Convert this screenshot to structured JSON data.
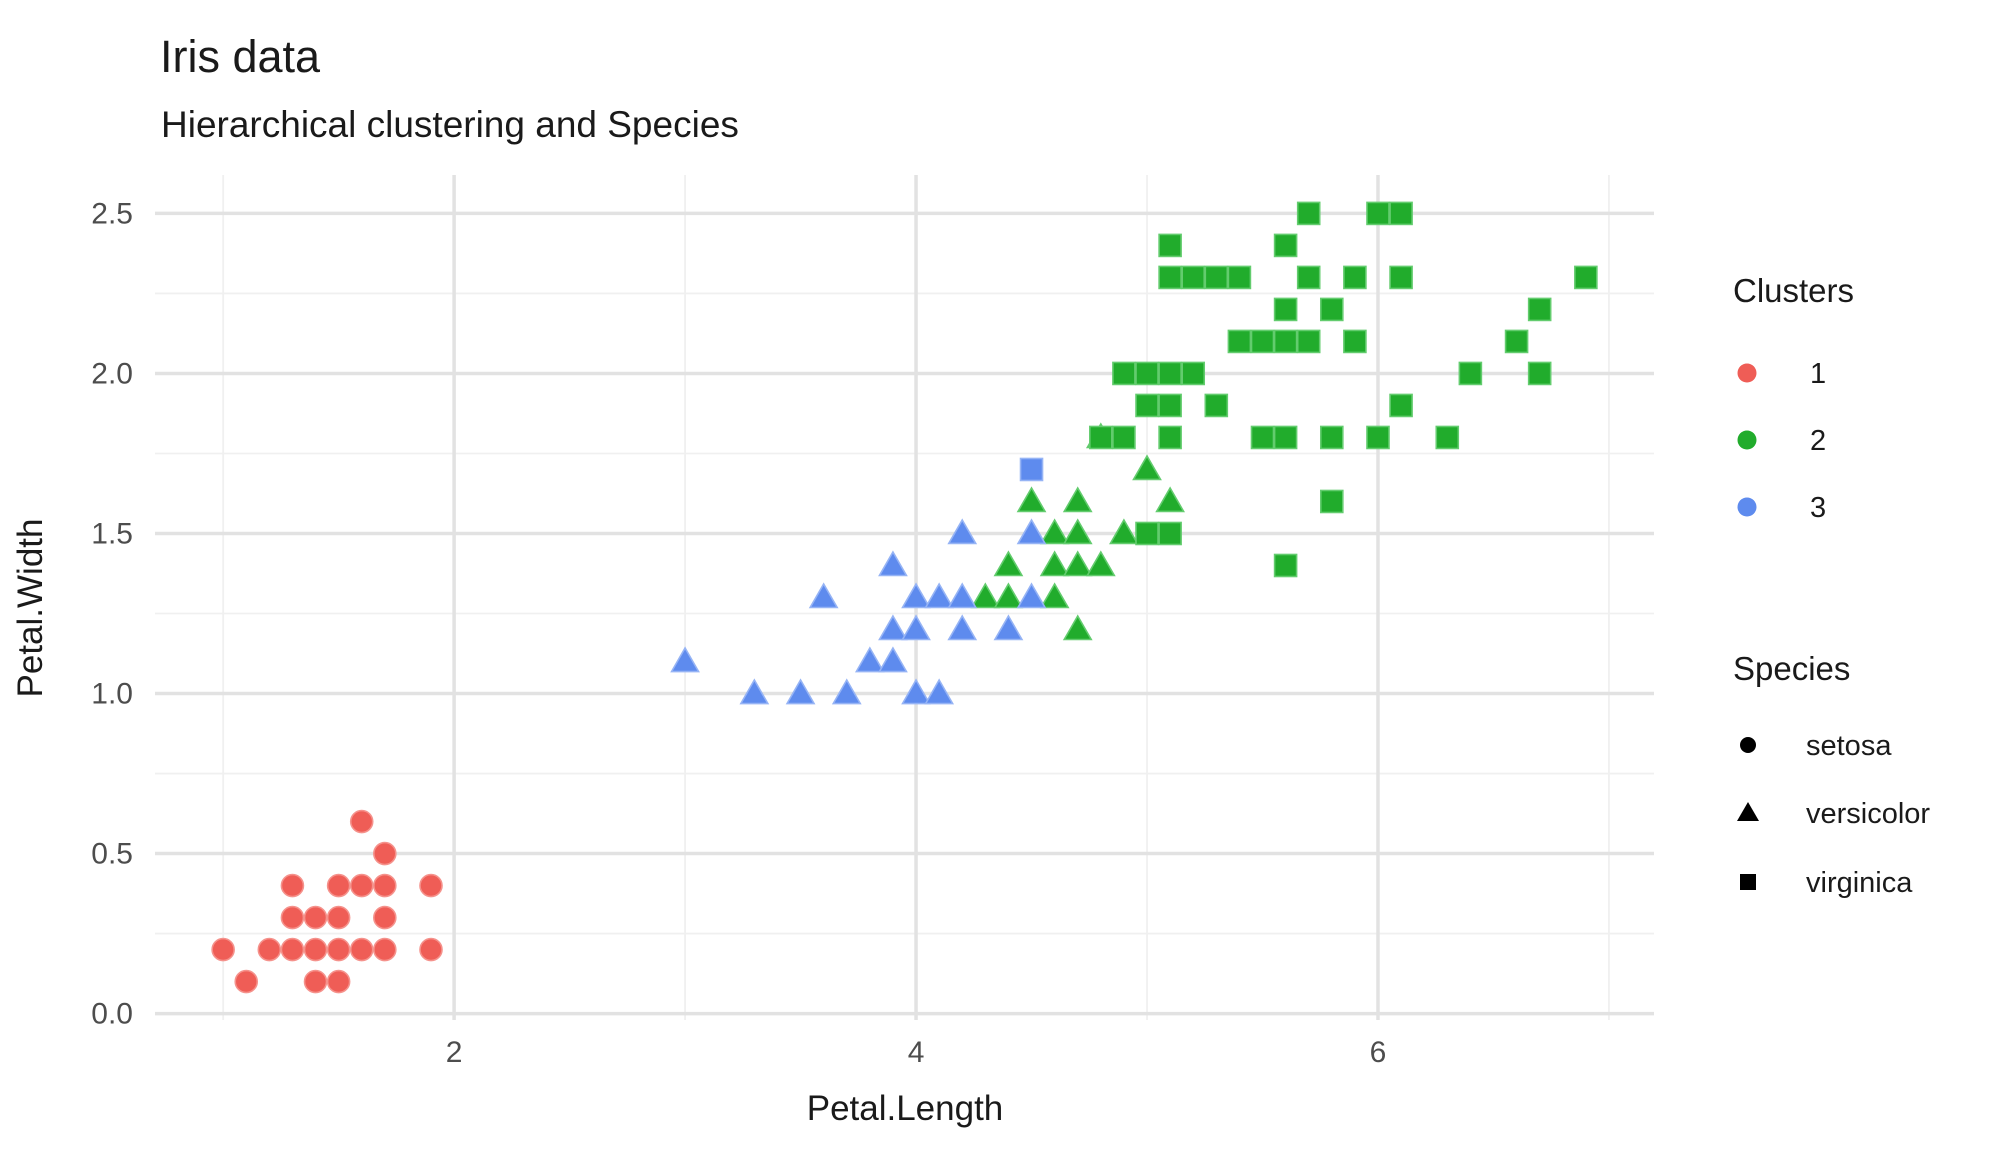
{
  "title": "Iris data",
  "subtitle": "Hierarchical clustering and Species",
  "axes": {
    "x_label": "Petal.Length",
    "y_label": "Petal.Width",
    "x_tick_labels": [
      "2",
      "4",
      "6"
    ],
    "y_tick_labels": [
      "0.0",
      "0.5",
      "1.0",
      "1.5",
      "2.0",
      "2.5"
    ]
  },
  "legend": {
    "clusters": {
      "title": "Clusters",
      "items": [
        {
          "label": "1",
          "color": "#EF5D56"
        },
        {
          "label": "2",
          "color": "#21AC2C"
        },
        {
          "label": "3",
          "color": "#5E8BEE"
        }
      ]
    },
    "species": {
      "title": "Species",
      "items": [
        {
          "label": "setosa",
          "shape": "circle"
        },
        {
          "label": "versicolor",
          "shape": "triangle"
        },
        {
          "label": "virginica",
          "shape": "square"
        }
      ]
    }
  },
  "style_colors": {
    "grid_major": "#e2e2e2",
    "grid_minor": "#f0f0f0",
    "tick_text": "#4d4d4d",
    "main_text": "#1a1a1a"
  },
  "chart_data": {
    "type": "scatter",
    "title": "Iris data",
    "subtitle": "Hierarchical clustering and Species",
    "xlabel": "Petal.Length",
    "ylabel": "Petal.Width",
    "x_range": [
      0.705,
      7.195
    ],
    "y_range": [
      -0.02,
      2.62
    ],
    "x_ticks_major": [
      2,
      4,
      6
    ],
    "x_ticks_minor": [
      1,
      3,
      5,
      7
    ],
    "y_ticks_major": [
      0,
      0.5,
      1.0,
      1.5,
      2.0,
      2.5
    ],
    "y_ticks_minor": [
      0.25,
      0.75,
      1.25,
      1.75,
      2.25
    ],
    "grid": true,
    "legend_position": "right",
    "series": [
      {
        "name": "cluster 2 / versicolor",
        "cluster": "2",
        "species": "versicolor",
        "shape": "triangle",
        "color": "#21AC2C",
        "stroke": "#63CC6E",
        "points": [
          [
            4.3,
            1.3
          ],
          [
            4.4,
            1.3
          ],
          [
            4.6,
            1.3
          ],
          [
            4.7,
            1.2
          ],
          [
            4.4,
            1.4
          ],
          [
            4.6,
            1.4
          ],
          [
            4.7,
            1.4
          ],
          [
            4.8,
            1.4
          ],
          [
            4.6,
            1.5
          ],
          [
            4.7,
            1.5
          ],
          [
            4.9,
            1.5
          ],
          [
            4.5,
            1.6
          ],
          [
            4.7,
            1.6
          ],
          [
            5.1,
            1.6
          ],
          [
            5.0,
            1.7
          ],
          [
            4.8,
            1.8
          ]
        ]
      },
      {
        "name": "cluster 3 / versicolor",
        "cluster": "3",
        "species": "versicolor",
        "shape": "triangle",
        "color": "#5E8BEE",
        "stroke": "#96B4F5",
        "points": [
          [
            3.0,
            1.1
          ],
          [
            3.3,
            1.0
          ],
          [
            3.5,
            1.0
          ],
          [
            3.6,
            1.3
          ],
          [
            3.7,
            1.0
          ],
          [
            3.8,
            1.1
          ],
          [
            3.9,
            1.1
          ],
          [
            3.9,
            1.2
          ],
          [
            3.9,
            1.4
          ],
          [
            4.0,
            1.0
          ],
          [
            4.0,
            1.2
          ],
          [
            4.0,
            1.3
          ],
          [
            4.1,
            1.0
          ],
          [
            4.1,
            1.3
          ],
          [
            4.2,
            1.2
          ],
          [
            4.2,
            1.3
          ],
          [
            4.2,
            1.5
          ],
          [
            4.4,
            1.2
          ],
          [
            4.5,
            1.3
          ],
          [
            4.5,
            1.5
          ]
        ]
      },
      {
        "name": "cluster 2 / virginica",
        "cluster": "2",
        "species": "virginica",
        "shape": "square",
        "color": "#21AC2C",
        "stroke": "#63CC6E",
        "points": [
          [
            5.7,
            2.5
          ],
          [
            6.0,
            2.5
          ],
          [
            6.1,
            2.5
          ],
          [
            5.1,
            2.4
          ],
          [
            5.6,
            2.4
          ],
          [
            5.1,
            2.3
          ],
          [
            5.2,
            2.3
          ],
          [
            5.3,
            2.3
          ],
          [
            5.4,
            2.3
          ],
          [
            5.7,
            2.3
          ],
          [
            5.9,
            2.3
          ],
          [
            6.1,
            2.3
          ],
          [
            6.9,
            2.3
          ],
          [
            5.6,
            2.2
          ],
          [
            5.8,
            2.2
          ],
          [
            6.7,
            2.2
          ],
          [
            5.4,
            2.1
          ],
          [
            5.5,
            2.1
          ],
          [
            5.6,
            2.1
          ],
          [
            5.7,
            2.1
          ],
          [
            5.9,
            2.1
          ],
          [
            6.6,
            2.1
          ],
          [
            4.9,
            2.0
          ],
          [
            5.0,
            2.0
          ],
          [
            5.1,
            2.0
          ],
          [
            5.2,
            2.0
          ],
          [
            6.4,
            2.0
          ],
          [
            6.7,
            2.0
          ],
          [
            5.0,
            1.9
          ],
          [
            5.1,
            1.9
          ],
          [
            5.3,
            1.9
          ],
          [
            6.1,
            1.9
          ],
          [
            4.8,
            1.8
          ],
          [
            4.9,
            1.8
          ],
          [
            5.1,
            1.8
          ],
          [
            5.5,
            1.8
          ],
          [
            5.6,
            1.8
          ],
          [
            5.8,
            1.8
          ],
          [
            6.0,
            1.8
          ],
          [
            6.3,
            1.8
          ],
          [
            5.8,
            1.6
          ],
          [
            5.0,
            1.5
          ],
          [
            5.1,
            1.5
          ],
          [
            5.6,
            1.4
          ]
        ]
      },
      {
        "name": "cluster 3 / virginica",
        "cluster": "3",
        "species": "virginica",
        "shape": "square",
        "color": "#5E8BEE",
        "stroke": "#96B4F5",
        "points": [
          [
            4.5,
            1.7
          ]
        ]
      },
      {
        "name": "cluster 1 / setosa",
        "cluster": "1",
        "species": "setosa",
        "shape": "circle",
        "color": "#EF5D56",
        "stroke": "#F5928C",
        "points": [
          [
            1.6,
            0.6
          ],
          [
            1.7,
            0.5
          ],
          [
            1.3,
            0.4
          ],
          [
            1.5,
            0.4
          ],
          [
            1.6,
            0.4
          ],
          [
            1.7,
            0.4
          ],
          [
            1.9,
            0.4
          ],
          [
            1.3,
            0.3
          ],
          [
            1.4,
            0.3
          ],
          [
            1.5,
            0.3
          ],
          [
            1.7,
            0.3
          ],
          [
            1.0,
            0.2
          ],
          [
            1.2,
            0.2
          ],
          [
            1.3,
            0.2
          ],
          [
            1.4,
            0.2
          ],
          [
            1.5,
            0.2
          ],
          [
            1.6,
            0.2
          ],
          [
            1.7,
            0.2
          ],
          [
            1.9,
            0.2
          ],
          [
            1.1,
            0.1
          ],
          [
            1.4,
            0.1
          ],
          [
            1.5,
            0.1
          ]
        ]
      }
    ]
  }
}
